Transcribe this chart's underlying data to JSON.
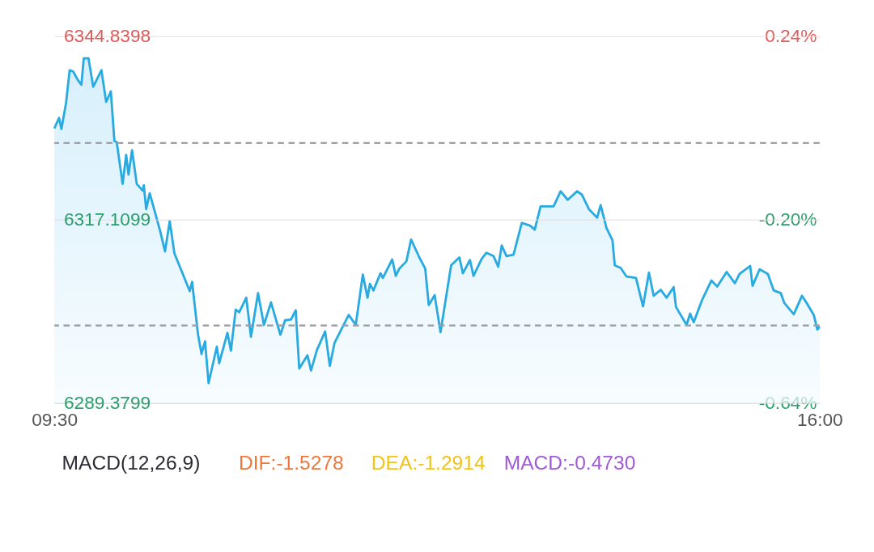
{
  "chart_data": [
    {
      "type": "area",
      "x": [
        9.5,
        9.54,
        9.56,
        9.6,
        9.63,
        9.66,
        9.7,
        9.73,
        9.75,
        9.79,
        9.83,
        9.9,
        9.94,
        9.98,
        10.01,
        10.03,
        10.08,
        10.11,
        10.13,
        10.16,
        10.2,
        10.25,
        10.26,
        10.28,
        10.31,
        10.4,
        10.44,
        10.48,
        10.52,
        10.65,
        10.67,
        10.72,
        10.75,
        10.78,
        10.81,
        10.88,
        10.9,
        10.97,
        11.0,
        11.04,
        11.07,
        11.13,
        11.17,
        11.23,
        11.28,
        11.34,
        11.42,
        11.46,
        11.51,
        11.55,
        11.58,
        11.65,
        11.68,
        11.73,
        11.8,
        11.84,
        11.88,
        12.0,
        12.06,
        12.12,
        12.16,
        12.18,
        12.21,
        12.27,
        12.29,
        12.37,
        12.4,
        12.43,
        12.49,
        12.53,
        12.6,
        12.65,
        12.68,
        12.73,
        12.78,
        12.87,
        12.94,
        12.97,
        13.03,
        13.06,
        13.13,
        13.17,
        13.23,
        13.27,
        13.3,
        13.34,
        13.4,
        13.47,
        13.54,
        13.58,
        13.63,
        13.74,
        13.8,
        13.86,
        13.94,
        13.98,
        14.04,
        14.11,
        14.14,
        14.19,
        14.24,
        14.26,
        14.31,
        14.36,
        14.44,
        14.5,
        14.55,
        14.59,
        14.65,
        14.7,
        14.76,
        14.78,
        14.87,
        14.9,
        14.93,
        15.0,
        15.08,
        15.13,
        15.21,
        15.28,
        15.32,
        15.41,
        15.43,
        15.49,
        15.56,
        15.61,
        15.67,
        15.7,
        15.78,
        15.85,
        15.89,
        15.95,
        15.98,
        16.0
      ],
      "series": [
        {
          "color": "#29abe2",
          "values": [
            6330.9,
            6332.5,
            6330.8,
            6334.8,
            6339.7,
            6339.5,
            6338.2,
            6337.5,
            6341.5,
            6341.5,
            6337.2,
            6339.7,
            6334.9,
            6336.5,
            6329.0,
            6328.8,
            6322.5,
            6326.9,
            6323.9,
            6327.6,
            6322.5,
            6321.5,
            6322.3,
            6318.7,
            6321.1,
            6315.3,
            6312.3,
            6316.9,
            6312.0,
            6306.3,
            6307.7,
            6299.8,
            6296.8,
            6298.7,
            6292.4,
            6297.9,
            6295.4,
            6300.0,
            6297.3,
            6303.5,
            6303.1,
            6305.3,
            6299.4,
            6306.0,
            6301.2,
            6304.6,
            6299.7,
            6301.9,
            6302.0,
            6303.4,
            6294.6,
            6296.6,
            6294.3,
            6297.4,
            6300.2,
            6295.0,
            6298.5,
            6302.7,
            6301.2,
            6308.8,
            6305.3,
            6307.4,
            6306.4,
            6309.0,
            6308.3,
            6311.1,
            6308.6,
            6309.7,
            6310.8,
            6314.1,
            6311.4,
            6309.7,
            6304.2,
            6305.7,
            6300.1,
            6310.2,
            6311.4,
            6309.0,
            6311.0,
            6308.6,
            6311.2,
            6312.1,
            6311.6,
            6310.0,
            6313.2,
            6311.6,
            6311.8,
            6316.6,
            6316.2,
            6315.6,
            6319.1,
            6319.1,
            6321.4,
            6320.1,
            6321.4,
            6320.9,
            6318.7,
            6317.4,
            6319.3,
            6315.8,
            6314.0,
            6310.2,
            6309.8,
            6308.5,
            6308.3,
            6304.0,
            6309.1,
            6305.6,
            6306.5,
            6305.3,
            6306.9,
            6303.9,
            6301.2,
            6302.9,
            6301.6,
            6304.9,
            6307.9,
            6307.0,
            6309.2,
            6307.5,
            6308.9,
            6310.1,
            6307.1,
            6309.6,
            6308.9,
            6306.4,
            6306.0,
            6304.5,
            6302.8,
            6305.6,
            6304.5,
            6302.7,
            6300.5,
            6300.9
          ]
        }
      ],
      "xlim": [
        9.5,
        16
      ],
      "xticks": [
        {
          "value": 9.5,
          "label": "09:30"
        },
        {
          "value": 16,
          "label": "16:00"
        }
      ],
      "ylim": [
        6289.3799,
        6344.8398
      ],
      "yticks": [
        6289.3799,
        6317.1099,
        6344.8398
      ],
      "y2lim": [
        -0.64,
        0.24
      ],
      "y2ticks": [
        {
          "value": -0.64,
          "label": "-0.64%"
        },
        {
          "value": -0.2,
          "label": "-0.20%"
        },
        {
          "value": 0.24,
          "label": "0.24%"
        }
      ],
      "grid": "y",
      "ref_lines": [
        {
          "axis": "y",
          "value": 6328.7,
          "color": "#9e9ea6",
          "line_style": "dashed"
        },
        {
          "axis": "y",
          "value": 6301.1,
          "color": "#9e9ea6",
          "line_style": "dashed"
        }
      ]
    },
    {
      "type": "other",
      "annotations": [
        "MACD(12,26,9)",
        "DIF:-1.5278",
        "DEA:-1.2914",
        "MACD:-0.4730"
      ],
      "colors": [
        "#2b2b33",
        "#f0773a",
        "#f2c21b",
        "#a05ad6"
      ]
    }
  ]
}
